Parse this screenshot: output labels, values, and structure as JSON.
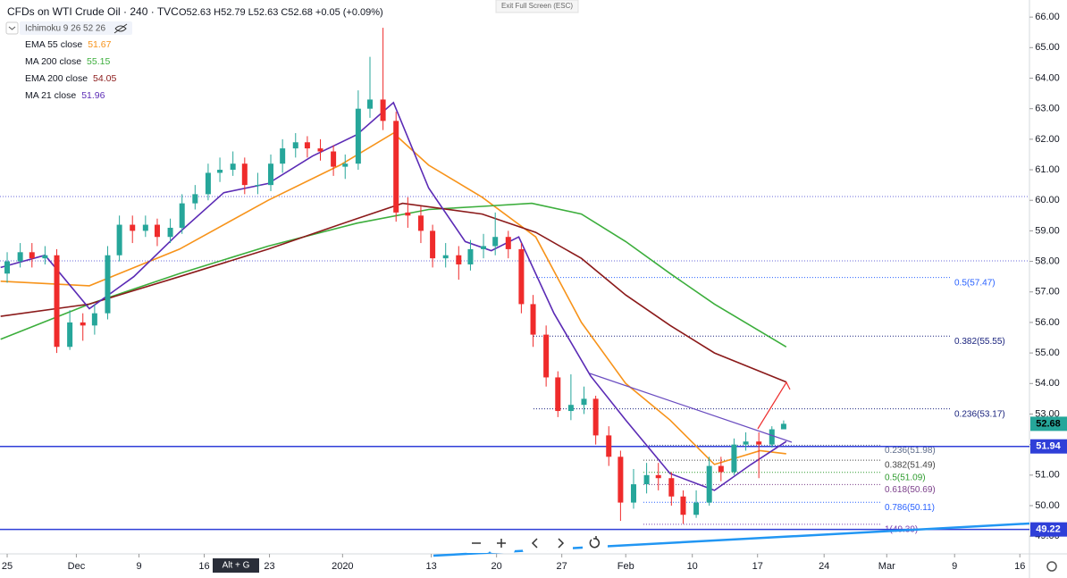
{
  "chart_data": {
    "type": "candlestick",
    "title": "CFDs on WTI Crude Oil · 240 · TVC",
    "ohlc_header": "O52.63 H52.79 L52.63 C52.68 +0.05 (+0.09%)",
    "indicator": "Ichimoku 9 26 52 26",
    "exit_fullscreen": "Exit Full Screen (ESC)",
    "shortcut": "Alt + G",
    "up_color": "#26a69a",
    "down_color": "#ef2b2b",
    "xlim": [
      -0.55,
      78.2
    ],
    "ylim": [
      48.42,
      66.56
    ],
    "xticks": [
      {
        "value": 0,
        "label": "25"
      },
      {
        "value": 5.3,
        "label": "Dec"
      },
      {
        "value": 10.1,
        "label": "9"
      },
      {
        "value": 15.1,
        "label": "16"
      },
      {
        "value": 20.1,
        "label": "23"
      },
      {
        "value": 25.7,
        "label": "2020"
      },
      {
        "value": 32.5,
        "label": "13"
      },
      {
        "value": 37.5,
        "label": "20"
      },
      {
        "value": 42.5,
        "label": "27"
      },
      {
        "value": 47.4,
        "label": "Feb"
      },
      {
        "value": 52.5,
        "label": "10"
      },
      {
        "value": 57.5,
        "label": "17"
      },
      {
        "value": 62.6,
        "label": "24"
      },
      {
        "value": 67.4,
        "label": "Mar"
      },
      {
        "value": 72.6,
        "label": "9"
      },
      {
        "value": 77.6,
        "label": "16"
      }
    ],
    "yticks": [
      {
        "value": 49,
        "label": "49.00"
      },
      {
        "value": 50,
        "label": "50.00"
      },
      {
        "value": 51,
        "label": "51.00"
      },
      {
        "value": 52,
        "label": "52.00"
      },
      {
        "value": 53,
        "label": "53.00"
      },
      {
        "value": 54,
        "label": "54.00"
      },
      {
        "value": 55,
        "label": "55.00"
      },
      {
        "value": 56,
        "label": "56.00"
      },
      {
        "value": 57,
        "label": "57.00"
      },
      {
        "value": 58,
        "label": "58.00"
      },
      {
        "value": 59,
        "label": "59.00"
      },
      {
        "value": 60,
        "label": "60.00"
      },
      {
        "value": 61,
        "label": "61.00"
      },
      {
        "value": 62,
        "label": "62.00"
      },
      {
        "value": 63,
        "label": "63.00"
      },
      {
        "value": 64,
        "label": "64.00"
      },
      {
        "value": 65,
        "label": "65.00"
      },
      {
        "value": 66,
        "label": "66.00"
      }
    ],
    "x": [
      0,
      1,
      1.9,
      2.9,
      3.8,
      4.8,
      5.8,
      6.7,
      7.7,
      8.6,
      9.6,
      10.6,
      11.5,
      12.5,
      13.4,
      14.4,
      15.4,
      16.3,
      17.3,
      18.2,
      19.2,
      20.2,
      21.1,
      22.1,
      23,
      24,
      25,
      25.9,
      26.9,
      27.8,
      28.8,
      29.8,
      30.7,
      31.7,
      32.6,
      33.6,
      34.6,
      35.5,
      36.5,
      37.4,
      38.4,
      39.4,
      40.3,
      41.3,
      42.2,
      43.2,
      44.2,
      45.1,
      46.1,
      47,
      48,
      49,
      49.9,
      50.9,
      51.8,
      52.8,
      53.8,
      54.7,
      55.7,
      56.6,
      57.6,
      58.6,
      59.5
    ],
    "open": [
      57.6,
      58.0,
      58.3,
      58.1,
      58.2,
      55.2,
      56.0,
      55.9,
      56.3,
      58.2,
      59.2,
      59.0,
      59.2,
      58.8,
      59.1,
      59.9,
      60.2,
      60.9,
      61.0,
      61.2,
      60.5,
      60.5,
      61.2,
      61.7,
      61.9,
      61.7,
      61.6,
      61.1,
      61.2,
      63.0,
      63.3,
      62.6,
      59.6,
      59.5,
      59.0,
      58.1,
      58.2,
      57.9,
      58.4,
      58.5,
      58.8,
      58.4,
      56.6,
      55.6,
      54.2,
      53.1,
      53.3,
      53.5,
      52.3,
      51.6,
      50.1,
      50.7,
      51.0,
      50.9,
      50.3,
      49.7,
      50.1,
      51.3,
      51.1,
      52.0,
      52.1,
      52.0,
      52.5
    ],
    "high": [
      58.3,
      58.6,
      58.6,
      58.5,
      58.4,
      56.4,
      56.3,
      56.6,
      58.5,
      59.5,
      59.5,
      59.5,
      59.4,
      59.4,
      60.2,
      60.5,
      61.2,
      61.4,
      61.6,
      61.4,
      60.9,
      61.5,
      62.0,
      62.2,
      62.1,
      62.0,
      61.8,
      61.5,
      63.6,
      64.7,
      65.65,
      62.9,
      60.1,
      59.8,
      59.2,
      58.6,
      58.5,
      58.7,
      58.9,
      59.6,
      59.0,
      58.6,
      56.9,
      55.9,
      54.4,
      54.3,
      53.9,
      53.6,
      52.6,
      51.8,
      51.2,
      51.4,
      51.4,
      51.1,
      50.5,
      50.5,
      51.6,
      51.6,
      52.2,
      52.4,
      52.4,
      52.6,
      52.79
    ],
    "low": [
      57.3,
      57.8,
      57.8,
      57.9,
      55.0,
      55.1,
      55.4,
      55.6,
      56.1,
      58.0,
      58.6,
      58.8,
      58.5,
      58.6,
      58.9,
      59.7,
      60.0,
      60.6,
      60.8,
      60.2,
      60.2,
      60.3,
      60.9,
      61.4,
      61.4,
      61.3,
      60.8,
      60.7,
      61.0,
      62.7,
      62.3,
      59.3,
      59.1,
      58.6,
      57.8,
      57.8,
      57.4,
      57.7,
      58.1,
      58.2,
      58.1,
      56.3,
      55.2,
      53.9,
      52.9,
      52.8,
      53.0,
      52.0,
      51.3,
      49.5,
      49.9,
      50.4,
      50.5,
      50.0,
      49.4,
      49.6,
      50.0,
      50.8,
      51.0,
      51.8,
      50.9,
      51.9,
      52.63
    ],
    "close": [
      58.0,
      58.3,
      58.1,
      58.2,
      55.2,
      56.0,
      55.9,
      56.3,
      58.2,
      59.2,
      59.0,
      59.2,
      58.8,
      59.1,
      59.9,
      60.2,
      60.9,
      61.0,
      61.2,
      60.5,
      60.5,
      61.2,
      61.7,
      61.9,
      61.7,
      61.6,
      61.1,
      61.2,
      63.0,
      63.3,
      62.6,
      59.6,
      59.5,
      59.0,
      58.1,
      58.2,
      57.9,
      58.4,
      58.5,
      58.8,
      58.4,
      56.6,
      55.6,
      54.2,
      53.1,
      53.3,
      53.5,
      52.3,
      51.6,
      50.1,
      50.7,
      51.0,
      50.9,
      50.3,
      49.7,
      50.1,
      51.3,
      51.1,
      52.0,
      52.1,
      52.0,
      52.5,
      52.68
    ],
    "series": [
      {
        "name": "EMA 55 close",
        "legend_value": 51.67,
        "color": "#f7931a",
        "x": [
          -0.5,
          6.3,
          13.2,
          20,
          25.5,
          29.6,
          32.3,
          36.4,
          40.5,
          44,
          47.4,
          50.8,
          54.2,
          57.7,
          59.7
        ],
        "values": [
          57.35,
          57.2,
          58.4,
          60.0,
          61.15,
          62.2,
          61.15,
          60.1,
          58.8,
          56.0,
          54.0,
          52.8,
          51.35,
          51.8,
          51.7
        ]
      },
      {
        "name": "MA 200 close",
        "legend_value": 55.15,
        "color": "#3cae3c",
        "x": [
          -0.5,
          6.3,
          13.2,
          20,
          26.8,
          32.3,
          36.4,
          40.2,
          44,
          47.4,
          50.8,
          54.2,
          59.7
        ],
        "values": [
          55.45,
          56.6,
          57.6,
          58.5,
          59.25,
          59.7,
          59.8,
          59.9,
          59.55,
          58.65,
          57.6,
          56.6,
          55.2
        ]
      },
      {
        "name": "EMA 200 close",
        "legend_value": 54.05,
        "color": "#8b1a1a",
        "x": [
          -0.5,
          6.3,
          13.2,
          20,
          26.8,
          30.3,
          36.4,
          40.5,
          44,
          47.4,
          50.8,
          54.2,
          59.7
        ],
        "values": [
          56.2,
          56.6,
          57.5,
          58.4,
          59.4,
          59.9,
          59.55,
          58.95,
          58.1,
          56.9,
          55.9,
          55.0,
          54.05
        ]
      },
      {
        "name": "MA 21 close",
        "legend_value": 51.96,
        "color": "#5b2bb5",
        "x": [
          -0.5,
          2.9,
          6.3,
          9.7,
          13.2,
          16.6,
          20,
          23.4,
          26.8,
          29.6,
          32.3,
          35.1,
          37.1,
          39.2,
          41.9,
          44.7,
          47.4,
          50.8,
          54.2,
          57,
          59.7
        ],
        "values": [
          57.8,
          58.2,
          56.45,
          57.5,
          58.95,
          60.25,
          60.55,
          61.45,
          62.15,
          63.2,
          60.4,
          58.65,
          58.35,
          58.8,
          56.3,
          54.25,
          52.8,
          51.05,
          50.5,
          51.35,
          52.1
        ]
      }
    ],
    "last_price": 52.68,
    "price_lines": [
      51.94,
      49.22
    ],
    "fib_upper": [
      {
        "value": 57.47,
        "label": "0.5(57.47)",
        "color": "#2962ff"
      },
      {
        "value": 55.55,
        "label": "0.382(55.55)",
        "color": "#1a237e"
      },
      {
        "value": 53.17,
        "label": "0.236(53.17)",
        "color": "#1a237e"
      }
    ],
    "fib_lower": [
      {
        "value": 51.98,
        "label": "0.236(51.98)",
        "color": "#5d6b8a"
      },
      {
        "value": 51.49,
        "label": "0.382(51.49)",
        "color": "#444444"
      },
      {
        "value": 51.09,
        "label": "0.5(51.09)",
        "color": "#2e9b2e"
      },
      {
        "value": 50.69,
        "label": "0.618(50.69)",
        "color": "#7b3f8a"
      },
      {
        "value": 50.11,
        "label": "0.786(50.11)",
        "color": "#2962ff"
      },
      {
        "value": 49.39,
        "label": "1(49.39)",
        "color": "#7b3fb0"
      }
    ]
  }
}
